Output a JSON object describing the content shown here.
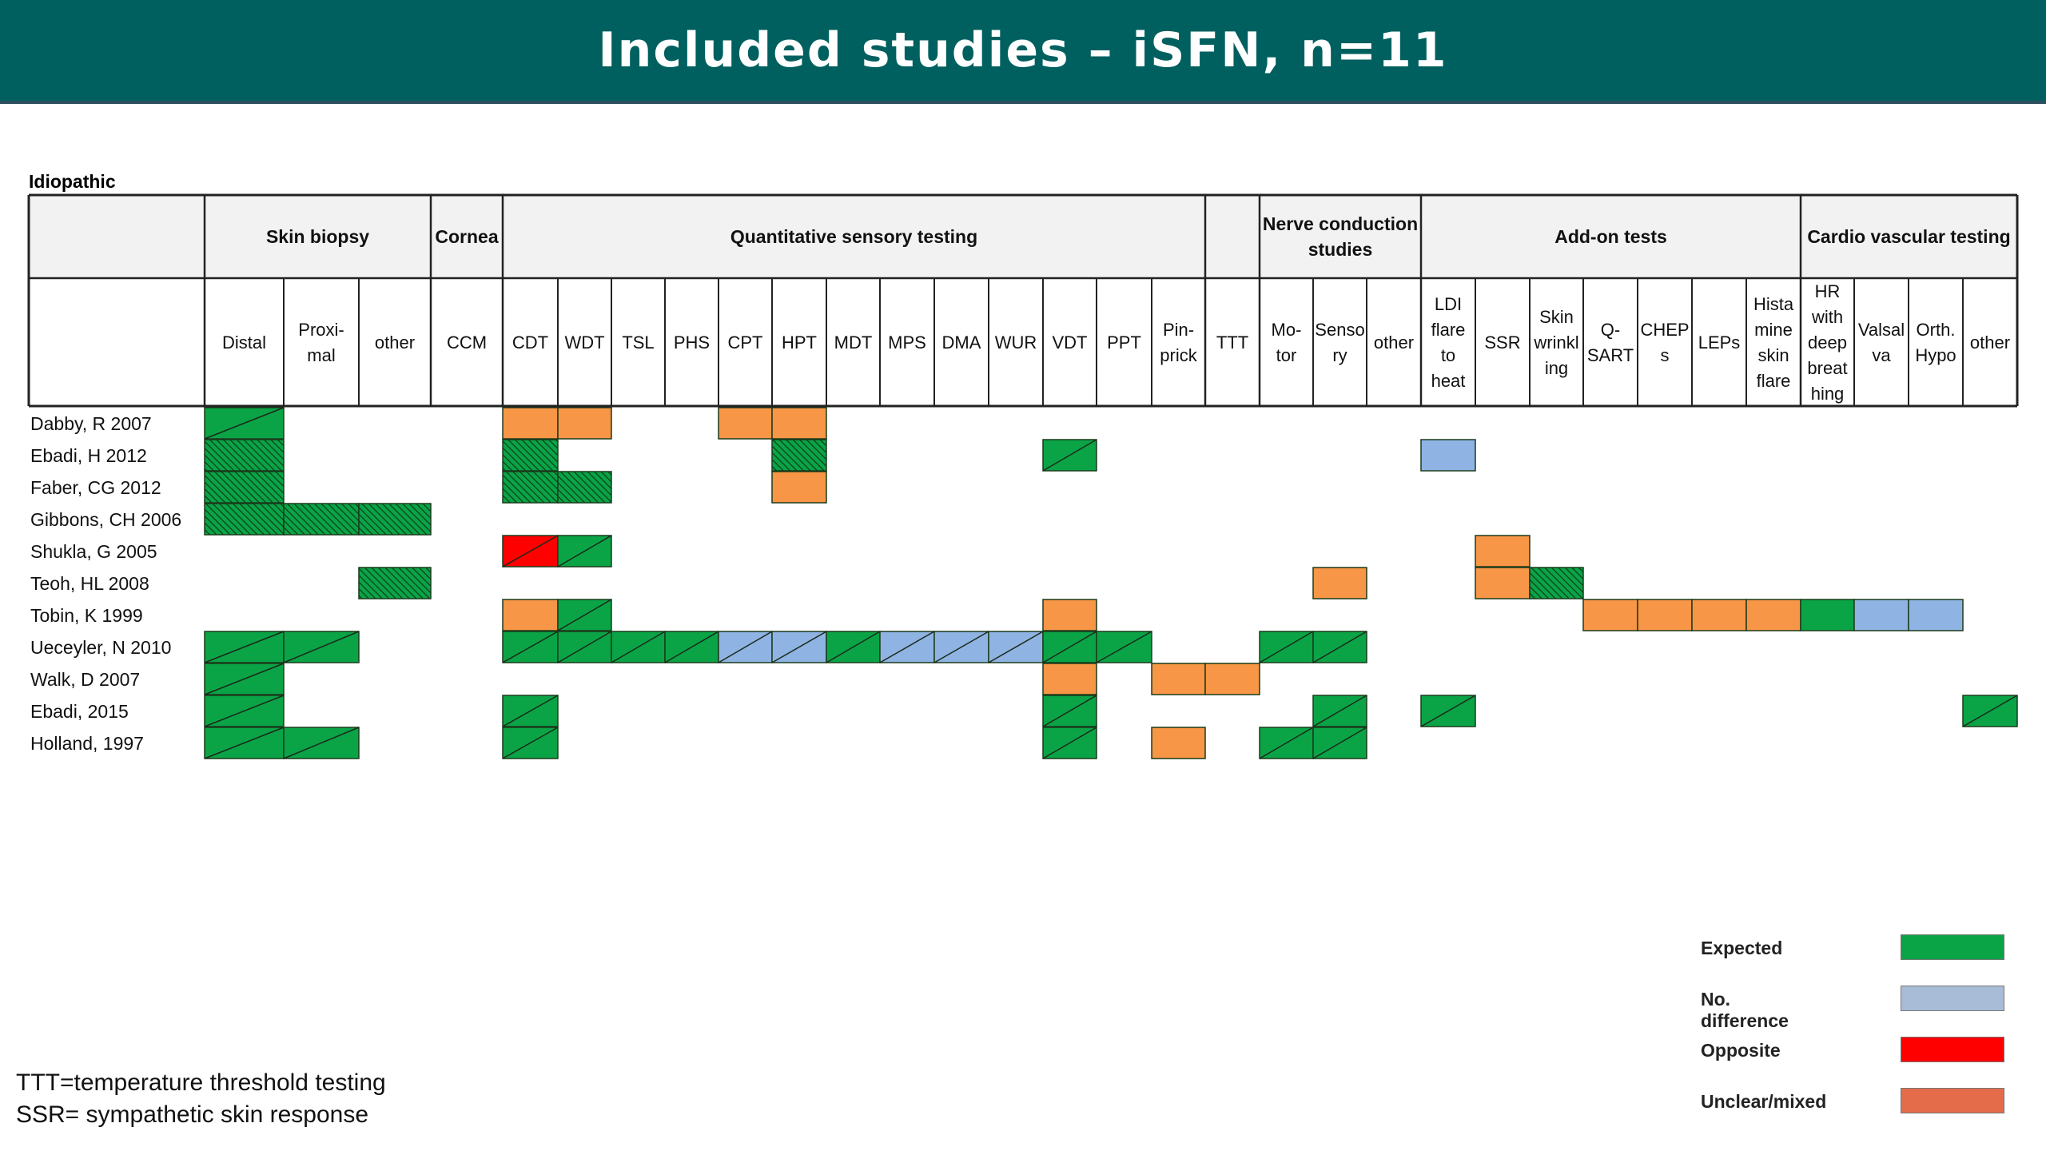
{
  "title": "Included studies – iSFN, n=11",
  "section_label": "Idiopathic",
  "colors": {
    "expected": "#0aa447",
    "no_difference": "#8fb4e3",
    "opposite": "#ff0000",
    "unclear": "#f79646",
    "header_bg": "#00605f"
  },
  "groups": [
    {
      "label": "Skin biopsy",
      "start": 0,
      "span": 3
    },
    {
      "label": "Cornea",
      "start": 3,
      "span": 1
    },
    {
      "label": "Quantitative sensory testing",
      "start": 4,
      "span": 13
    },
    {
      "label": "",
      "start": 17,
      "span": 1
    },
    {
      "label": "Nerve conduction studies",
      "start": 18,
      "span": 3
    },
    {
      "label": "Add-on tests",
      "start": 21,
      "span": 7
    },
    {
      "label": "Cardio vascular testing",
      "start": 28,
      "span": 4
    }
  ],
  "columns": [
    "Distal",
    "Proxi-\nmal",
    "other",
    "CCM",
    "CDT",
    "WDT",
    "TSL",
    "PHS",
    "CPT",
    "HPT",
    "MDT",
    "MPS",
    "DMA",
    "WUR",
    "VDT",
    "PPT",
    "Pin-\nprick",
    "TTT",
    "Mo-\ntor",
    "Senso\nry",
    "other",
    "LDI\nflare\nto\nheat",
    "SSR",
    "Skin\nwrinkl\ning",
    "Q-\nSART",
    "CHEP\ns",
    "LEPs",
    "Hista\nmine\nskin\nflare",
    "HR\nwith\ndeep\nbreat\nhing",
    "Valsal\nva",
    "Orth.\nHypo",
    "other"
  ],
  "legend": [
    {
      "label": "Expected",
      "key": "expected"
    },
    {
      "label": "No. difference",
      "key": "no_difference"
    },
    {
      "label": "Opposite",
      "key": "opposite"
    },
    {
      "label": "Unclear/mixed",
      "key": "unclear"
    }
  ],
  "footnotes": [
    "TTT=temperature threshold testing",
    "SSR= sympathetic skin response"
  ],
  "studies": [
    {
      "name": "Dabby, R 2007",
      "cells": [
        {
          "col": 0,
          "status": "expected",
          "pattern": "diag"
        },
        {
          "col": 4,
          "status": "unclear",
          "pattern": "solid"
        },
        {
          "col": 5,
          "status": "unclear",
          "pattern": "solid"
        },
        {
          "col": 8,
          "status": "unclear",
          "pattern": "solid"
        },
        {
          "col": 9,
          "status": "unclear",
          "pattern": "solid"
        }
      ]
    },
    {
      "name": "Ebadi, H 2012",
      "cells": [
        {
          "col": 0,
          "status": "expected",
          "pattern": "hatch"
        },
        {
          "col": 4,
          "status": "expected",
          "pattern": "hatch"
        },
        {
          "col": 9,
          "status": "expected",
          "pattern": "hatch"
        },
        {
          "col": 14,
          "status": "expected",
          "pattern": "diag"
        },
        {
          "col": 21,
          "status": "no_difference",
          "pattern": "solid"
        }
      ]
    },
    {
      "name": "Faber, CG 2012",
      "cells": [
        {
          "col": 0,
          "status": "expected",
          "pattern": "hatch"
        },
        {
          "col": 4,
          "status": "expected",
          "pattern": "hatch"
        },
        {
          "col": 5,
          "status": "expected",
          "pattern": "hatch"
        },
        {
          "col": 9,
          "status": "unclear",
          "pattern": "solid"
        }
      ]
    },
    {
      "name": "Gibbons, CH 2006",
      "cells": [
        {
          "col": 0,
          "status": "expected",
          "pattern": "hatch"
        },
        {
          "col": 1,
          "status": "expected",
          "pattern": "hatch"
        },
        {
          "col": 2,
          "status": "expected",
          "pattern": "hatch"
        }
      ]
    },
    {
      "name": "Shukla, G 2005",
      "cells": [
        {
          "col": 4,
          "status": "opposite",
          "pattern": "diag"
        },
        {
          "col": 5,
          "status": "expected",
          "pattern": "diag"
        },
        {
          "col": 22,
          "status": "unclear",
          "pattern": "solid"
        }
      ]
    },
    {
      "name": "Teoh, HL 2008",
      "cells": [
        {
          "col": 2,
          "status": "expected",
          "pattern": "hatch"
        },
        {
          "col": 19,
          "status": "unclear",
          "pattern": "solid"
        },
        {
          "col": 22,
          "status": "unclear",
          "pattern": "solid"
        },
        {
          "col": 23,
          "status": "expected",
          "pattern": "hatch"
        }
      ]
    },
    {
      "name": "Tobin, K 1999",
      "cells": [
        {
          "col": 4,
          "status": "unclear",
          "pattern": "solid"
        },
        {
          "col": 5,
          "status": "expected",
          "pattern": "diag"
        },
        {
          "col": 14,
          "status": "unclear",
          "pattern": "solid"
        },
        {
          "col": 24,
          "status": "unclear",
          "pattern": "solid"
        },
        {
          "col": 25,
          "status": "unclear",
          "pattern": "solid"
        },
        {
          "col": 26,
          "status": "unclear",
          "pattern": "solid"
        },
        {
          "col": 27,
          "status": "unclear",
          "pattern": "solid"
        },
        {
          "col": 28,
          "status": "expected",
          "pattern": "solid"
        },
        {
          "col": 29,
          "status": "no_difference",
          "pattern": "solid"
        },
        {
          "col": 30,
          "status": "no_difference",
          "pattern": "solid"
        }
      ]
    },
    {
      "name": "Ueceyler, N 2010",
      "cells": [
        {
          "col": 0,
          "status": "expected",
          "pattern": "diag"
        },
        {
          "col": 1,
          "status": "expected",
          "pattern": "diag"
        },
        {
          "col": 4,
          "status": "expected",
          "pattern": "diag"
        },
        {
          "col": 5,
          "status": "expected",
          "pattern": "diag"
        },
        {
          "col": 6,
          "status": "expected",
          "pattern": "diag"
        },
        {
          "col": 7,
          "status": "expected",
          "pattern": "diag"
        },
        {
          "col": 8,
          "status": "no_difference",
          "pattern": "diag"
        },
        {
          "col": 9,
          "status": "no_difference",
          "pattern": "diag"
        },
        {
          "col": 10,
          "status": "expected",
          "pattern": "diag"
        },
        {
          "col": 11,
          "status": "no_difference",
          "pattern": "diag"
        },
        {
          "col": 12,
          "status": "no_difference",
          "pattern": "diag"
        },
        {
          "col": 13,
          "status": "no_difference",
          "pattern": "diag"
        },
        {
          "col": 14,
          "status": "expected",
          "pattern": "diag"
        },
        {
          "col": 15,
          "status": "expected",
          "pattern": "diag"
        },
        {
          "col": 18,
          "status": "expected",
          "pattern": "diag"
        },
        {
          "col": 19,
          "status": "expected",
          "pattern": "diag"
        }
      ]
    },
    {
      "name": "Walk, D 2007",
      "cells": [
        {
          "col": 0,
          "status": "expected",
          "pattern": "diag"
        },
        {
          "col": 14,
          "status": "unclear",
          "pattern": "solid"
        },
        {
          "col": 16,
          "status": "unclear",
          "pattern": "solid"
        },
        {
          "col": 17,
          "status": "unclear",
          "pattern": "solid"
        }
      ]
    },
    {
      "name": "Ebadi, 2015",
      "cells": [
        {
          "col": 0,
          "status": "expected",
          "pattern": "diag"
        },
        {
          "col": 4,
          "status": "expected",
          "pattern": "diag"
        },
        {
          "col": 14,
          "status": "expected",
          "pattern": "diag"
        },
        {
          "col": 19,
          "status": "expected",
          "pattern": "diag"
        },
        {
          "col": 21,
          "status": "expected",
          "pattern": "diag"
        },
        {
          "col": 31,
          "status": "expected",
          "pattern": "diag"
        }
      ]
    },
    {
      "name": "Holland, 1997",
      "cells": [
        {
          "col": 0,
          "status": "expected",
          "pattern": "diag"
        },
        {
          "col": 1,
          "status": "expected",
          "pattern": "diag"
        },
        {
          "col": 4,
          "status": "expected",
          "pattern": "diag"
        },
        {
          "col": 14,
          "status": "expected",
          "pattern": "diag"
        },
        {
          "col": 16,
          "status": "unclear",
          "pattern": "solid"
        },
        {
          "col": 18,
          "status": "expected",
          "pattern": "diag"
        },
        {
          "col": 19,
          "status": "expected",
          "pattern": "diag"
        }
      ]
    }
  ]
}
